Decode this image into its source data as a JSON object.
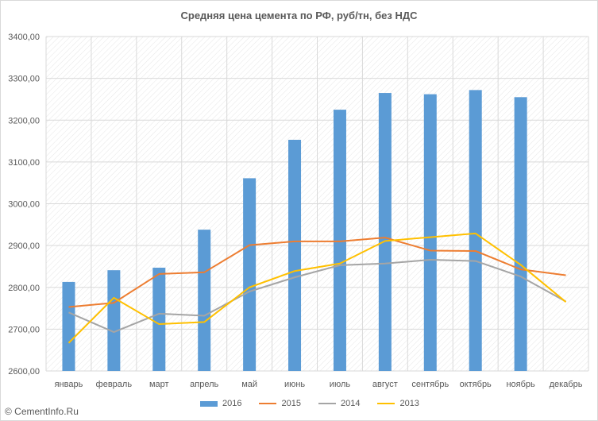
{
  "site_credit": "© CementInfo.Ru",
  "chart_data": {
    "type": "bar",
    "title": "Средняя цена цемента по РФ, руб/тн, без НДС",
    "xlabel": "",
    "ylabel": "",
    "ylim": [
      2600,
      3400
    ],
    "ytick_step": 100,
    "ytick_labels": [
      "2600,00",
      "2700,00",
      "2800,00",
      "2900,00",
      "3000,00",
      "3100,00",
      "3200,00",
      "3300,00",
      "3400,00"
    ],
    "grid": true,
    "legend_position": "bottom",
    "categories": [
      "январь",
      "февраль",
      "март",
      "апрель",
      "май",
      "июнь",
      "июль",
      "август",
      "сентябрь",
      "октябрь",
      "ноябрь",
      "декабрь"
    ],
    "series": [
      {
        "name": "2016",
        "kind": "bar",
        "color": "#5b9bd5",
        "values": [
          2813,
          2841,
          2847,
          2938,
          3061,
          3153,
          3225,
          3265,
          3262,
          3272,
          3255,
          null
        ]
      },
      {
        "name": "2015",
        "kind": "line",
        "color": "#ed7d31",
        "values": [
          2753,
          2763,
          2832,
          2836,
          2901,
          2910,
          2910,
          2919,
          2888,
          2887,
          2843,
          2829
        ]
      },
      {
        "name": "2014",
        "kind": "line",
        "color": "#a5a5a5",
        "values": [
          2740,
          2693,
          2737,
          2732,
          2790,
          2824,
          2853,
          2857,
          2866,
          2863,
          2826,
          2766
        ]
      },
      {
        "name": "2013",
        "kind": "line",
        "color": "#ffc000",
        "values": [
          2667,
          2775,
          2712,
          2717,
          2800,
          2839,
          2857,
          2911,
          2920,
          2929,
          2854,
          2765
        ]
      }
    ]
  }
}
